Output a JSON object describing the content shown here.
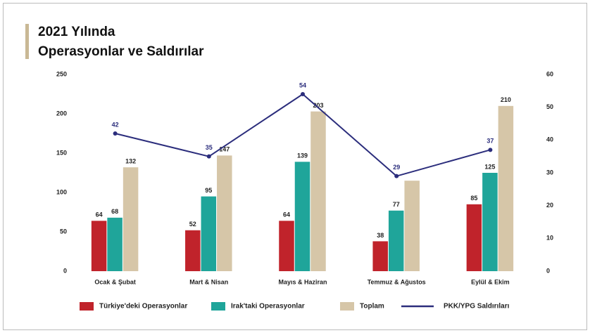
{
  "chart_data": {
    "type": "bar",
    "title_lines": [
      "2021 Yılında",
      "Operasyonlar ve Saldırılar"
    ],
    "categories": [
      "Ocak & Şubat",
      "Mart & Nisan",
      "Mayıs & Haziran",
      "Temmuz & Ağustos",
      "Eylül & Ekim"
    ],
    "series": [
      {
        "name": "Türkiye'deki Operasyonlar",
        "color": "#c0232b",
        "values": [
          64,
          52,
          64,
          38,
          85
        ]
      },
      {
        "name": "Irak'taki Operasyonlar",
        "color": "#1fa59a",
        "values": [
          68,
          95,
          139,
          77,
          125
        ]
      },
      {
        "name": "Toplam",
        "color": "#d6c6a8",
        "values": [
          132,
          147,
          203,
          115,
          210
        ],
        "value_labels": [
          "132",
          "147",
          "203",
          null,
          "210"
        ]
      },
      {
        "name": "PKK/YPG Saldırıları",
        "color": "#2b2d7c",
        "type": "line",
        "axis": "y2",
        "values": [
          42,
          35,
          54,
          29,
          37
        ]
      }
    ],
    "ylim": [
      0,
      250
    ],
    "yticks": [
      0,
      50,
      100,
      150,
      200,
      250
    ],
    "y2lim": [
      0,
      60
    ],
    "y2ticks": [
      0,
      10,
      20,
      30,
      40,
      50,
      60
    ]
  }
}
